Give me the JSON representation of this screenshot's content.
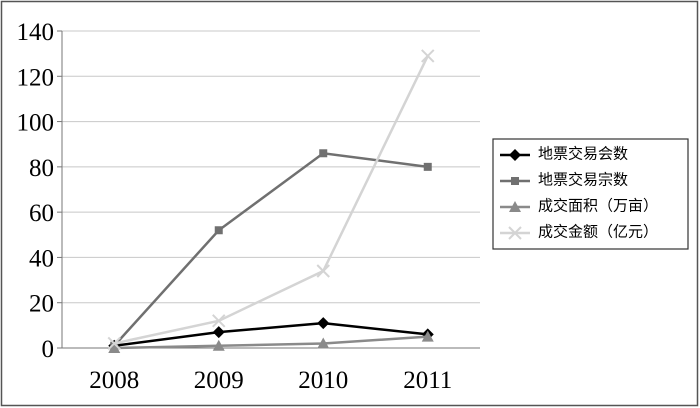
{
  "chart_data": {
    "type": "line",
    "categories": [
      "2008",
      "2009",
      "2010",
      "2011"
    ],
    "series": [
      {
        "name": "地票交易会数",
        "color": "#000000",
        "marker": "diamond",
        "values": [
          1,
          7,
          11,
          6
        ]
      },
      {
        "name": "地票交易宗数",
        "color": "#707070",
        "marker": "square",
        "values": [
          1,
          52,
          86,
          80
        ]
      },
      {
        "name": "成交面积（万亩）",
        "color": "#8a8a8a",
        "marker": "triangle",
        "values": [
          0,
          1,
          2,
          5
        ]
      },
      {
        "name": "成交金额（亿元）",
        "color": "#d4d4d4",
        "marker": "x",
        "values": [
          2,
          12,
          34,
          129
        ]
      }
    ],
    "ylim": [
      0,
      140
    ],
    "yticks": [
      0,
      20,
      40,
      60,
      80,
      100,
      120,
      140
    ],
    "grid": true,
    "legend": "right"
  }
}
